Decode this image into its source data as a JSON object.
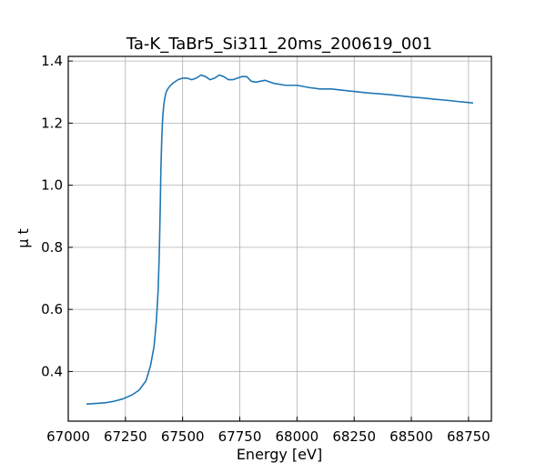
{
  "chart_data": {
    "type": "line",
    "title": "Ta-K_TaBr5_Si311_20ms_200619_001",
    "xlabel": "Energy [eV]",
    "ylabel": "μ t",
    "xlim": [
      67000,
      68850
    ],
    "ylim": [
      0.24,
      1.415
    ],
    "grid": true,
    "x_ticks": [
      67000,
      67250,
      67500,
      67750,
      68000,
      68250,
      68500,
      68750
    ],
    "y_ticks": [
      0.4,
      0.6,
      0.8,
      1.0,
      1.2,
      1.4
    ],
    "colors": {
      "series": "#1f77b4",
      "grid": "#b0b0b0",
      "axes": "#000000"
    },
    "series": [
      {
        "x": [
          67080,
          67120,
          67160,
          67200,
          67240,
          67280,
          67310,
          67340,
          67360,
          67375,
          67385,
          67393,
          67398,
          67402,
          67405,
          67408,
          67411,
          67414,
          67418,
          67422,
          67428,
          67435,
          67445,
          67460,
          67480,
          67500,
          67520,
          67540,
          67560,
          67580,
          67600,
          67620,
          67640,
          67660,
          67680,
          67700,
          67720,
          67740,
          67760,
          67780,
          67800,
          67820,
          67840,
          67860,
          67880,
          67900,
          67950,
          68000,
          68050,
          68100,
          68150,
          68200,
          68250,
          68300,
          68350,
          68400,
          68450,
          68500,
          68550,
          68600,
          68650,
          68700,
          68770
        ],
        "y": [
          0.295,
          0.297,
          0.299,
          0.304,
          0.312,
          0.325,
          0.34,
          0.37,
          0.42,
          0.48,
          0.56,
          0.66,
          0.78,
          0.92,
          1.05,
          1.13,
          1.19,
          1.23,
          1.26,
          1.28,
          1.3,
          1.31,
          1.32,
          1.33,
          1.34,
          1.345,
          1.345,
          1.34,
          1.345,
          1.355,
          1.35,
          1.34,
          1.345,
          1.355,
          1.35,
          1.34,
          1.34,
          1.345,
          1.35,
          1.35,
          1.335,
          1.332,
          1.335,
          1.338,
          1.333,
          1.328,
          1.322,
          1.322,
          1.315,
          1.31,
          1.31,
          1.306,
          1.302,
          1.298,
          1.295,
          1.292,
          1.288,
          1.284,
          1.281,
          1.277,
          1.274,
          1.27,
          1.265
        ]
      }
    ]
  }
}
